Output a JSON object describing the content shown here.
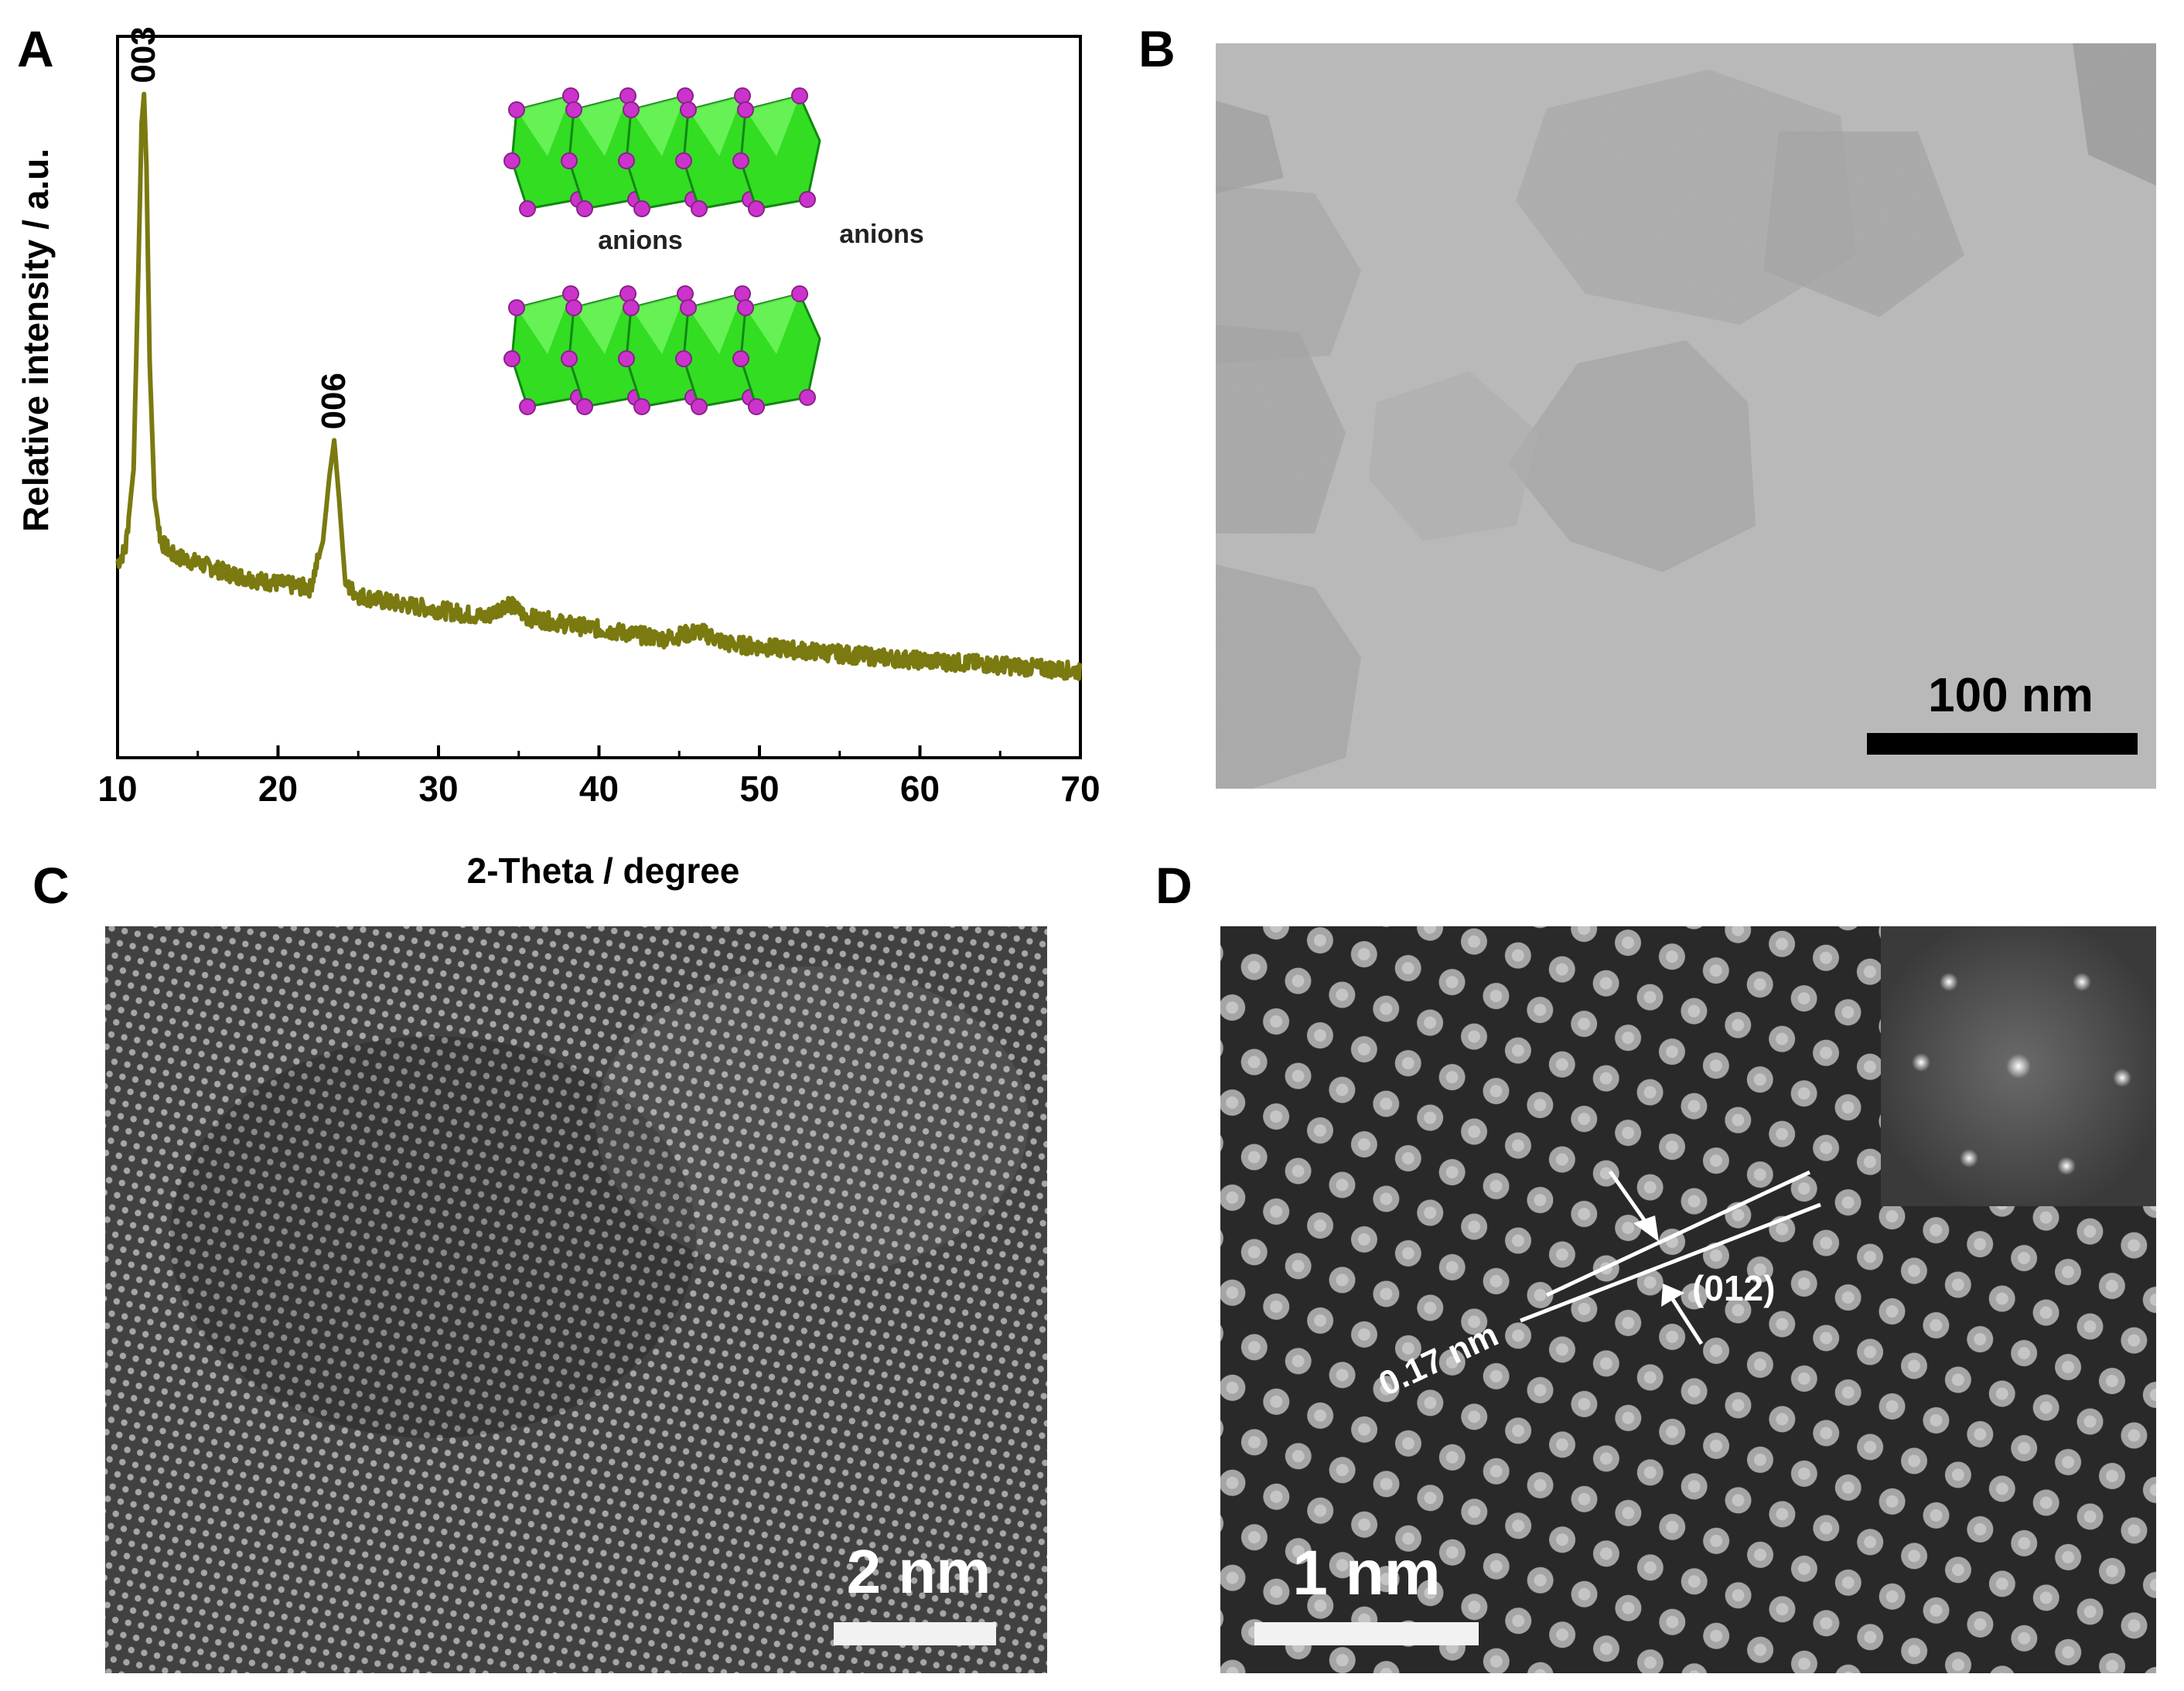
{
  "panels": {
    "a": {
      "letter": "A"
    },
    "b": {
      "letter": "B",
      "scale_bar": "100 nm"
    },
    "c": {
      "letter": "C",
      "scale_bar": "2 nm"
    },
    "d": {
      "letter": "D",
      "scale_bar": "1 nm",
      "spacing_label": "0.17 nm",
      "plane_label": "(012)"
    }
  },
  "inset": {
    "anion_label_1": "anions",
    "anion_label_2": "anions",
    "octahedra_color": "#33dd22",
    "atom_color": "#cc33cc"
  },
  "chart_data": {
    "type": "line",
    "title": "",
    "xlabel": "2-Theta / degree",
    "ylabel": "Relative intensity / a.u.",
    "xlim": [
      10,
      70
    ],
    "ylim": [
      0,
      100
    ],
    "xticks": [
      "10",
      "20",
      "30",
      "40",
      "50",
      "60",
      "70"
    ],
    "y_tick_labels": false,
    "grid": false,
    "line_color": "#7a7a10",
    "series": [
      {
        "x": [
          10.0,
          10.5,
          11.0,
          11.3,
          11.5,
          11.65,
          11.8,
          12.0,
          12.3,
          12.7,
          13.5,
          15,
          17,
          19,
          20.5,
          22.0,
          22.8,
          23.2,
          23.5,
          23.8,
          24.2,
          25,
          27,
          30,
          33,
          34.3,
          35.5,
          38,
          41,
          44,
          46.3,
          48,
          52,
          56,
          60,
          64,
          67,
          70
        ],
        "y": [
          27,
          29,
          40,
          68,
          88,
          92,
          82,
          55,
          36,
          30,
          28,
          27,
          25.5,
          24.5,
          24,
          23.5,
          30,
          39,
          44,
          36,
          24,
          22.5,
          21.5,
          20.5,
          19.5,
          21.5,
          19.5,
          18.5,
          17.5,
          16.5,
          17.5,
          15.8,
          15,
          14.2,
          13.5,
          13,
          12.5,
          12
        ]
      }
    ],
    "peaks": [
      {
        "label": "003",
        "x": 11.65,
        "y": 92
      },
      {
        "label": "006",
        "x": 23.5,
        "y": 44
      }
    ]
  }
}
